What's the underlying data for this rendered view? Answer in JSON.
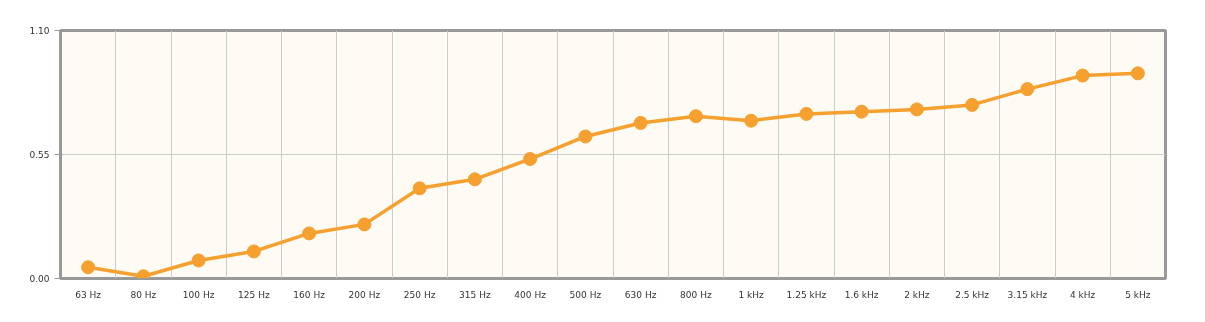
{
  "chart_data": {
    "type": "line",
    "categories": [
      "63 Hz",
      "80 Hz",
      "100 Hz",
      "125 Hz",
      "160 Hz",
      "200 Hz",
      "250 Hz",
      "315 Hz",
      "400 Hz",
      "500 Hz",
      "630 Hz",
      "800 Hz",
      "1 kHz",
      "1.25 kHz",
      "1.6 kHz",
      "2 kHz",
      "2.5 kHz",
      "3.15 kHz",
      "4 kHz",
      "5 kHz"
    ],
    "series": [
      {
        "color": "#f5a02f",
        "values": [
          0.05,
          0.01,
          0.08,
          0.12,
          0.2,
          0.24,
          0.4,
          0.44,
          0.53,
          0.63,
          0.69,
          0.72,
          0.7,
          0.73,
          0.74,
          0.75,
          0.77,
          0.84,
          0.9,
          0.91
        ]
      }
    ],
    "ylim": [
      0,
      1.1
    ],
    "yticks": [
      {
        "value": 0,
        "label": "0.00"
      },
      {
        "value": 0.55,
        "label": "0.55"
      },
      {
        "value": 1.1,
        "label": "1.10"
      }
    ],
    "grid": true,
    "marker": "circle",
    "line_style": "solid"
  }
}
